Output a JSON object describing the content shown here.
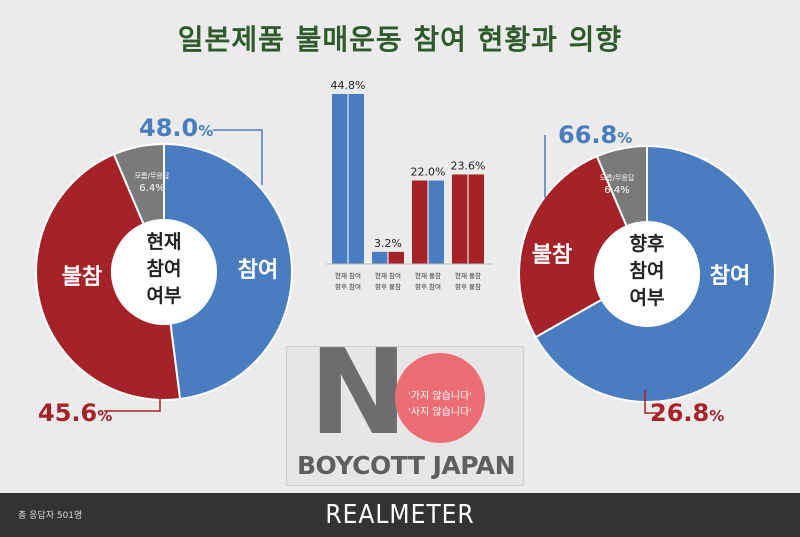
{
  "title": "일본제품 불매운동 참여 현황과 의향",
  "footer": {
    "respondents": "총 응답자 501명",
    "brand": "REALMETER"
  },
  "boycott": {
    "letter": "N",
    "slogan1": "'가지 않습니다'",
    "slogan2": "'사지 않습니다'",
    "text": "BOYCOTT JAPAN"
  },
  "colors": {
    "blue": "#4a7dc0",
    "red": "#a52228",
    "gray": "#7a7a7a"
  },
  "chart_data": [
    {
      "type": "pie",
      "center_label": [
        "현재",
        "참여",
        "여부"
      ],
      "slices": [
        {
          "label": "참여",
          "value": 48.0,
          "display": "48.0",
          "color": "#4a7dc0"
        },
        {
          "label": "불참",
          "value": 45.6,
          "display": "45.6",
          "color": "#a52228"
        },
        {
          "label": "모름/무응답",
          "value": 6.4,
          "display": "6.4%",
          "color": "#7a7a7a"
        }
      ],
      "unit": "%"
    },
    {
      "type": "bar",
      "categories": [
        [
          "현재 참여",
          "향후 참여"
        ],
        [
          "현재 참여",
          "향후 불참"
        ],
        [
          "현재 불참",
          "향후 참여"
        ],
        [
          "현재 불참",
          "향후 불참"
        ]
      ],
      "values": [
        44.8,
        3.2,
        22.0,
        23.6
      ],
      "labels": [
        "44.8%",
        "3.2%",
        "22.0%",
        "23.6%"
      ],
      "ylim": [
        0,
        44.8
      ]
    },
    {
      "type": "pie",
      "center_label": [
        "향후",
        "참여",
        "여부"
      ],
      "slices": [
        {
          "label": "참여",
          "value": 66.8,
          "display": "66.8",
          "color": "#4a7dc0"
        },
        {
          "label": "불참",
          "value": 26.8,
          "display": "26.8",
          "color": "#a52228"
        },
        {
          "label": "모름/무응답",
          "value": 6.4,
          "display": "6.4%",
          "color": "#7a7a7a"
        }
      ],
      "unit": "%"
    }
  ]
}
